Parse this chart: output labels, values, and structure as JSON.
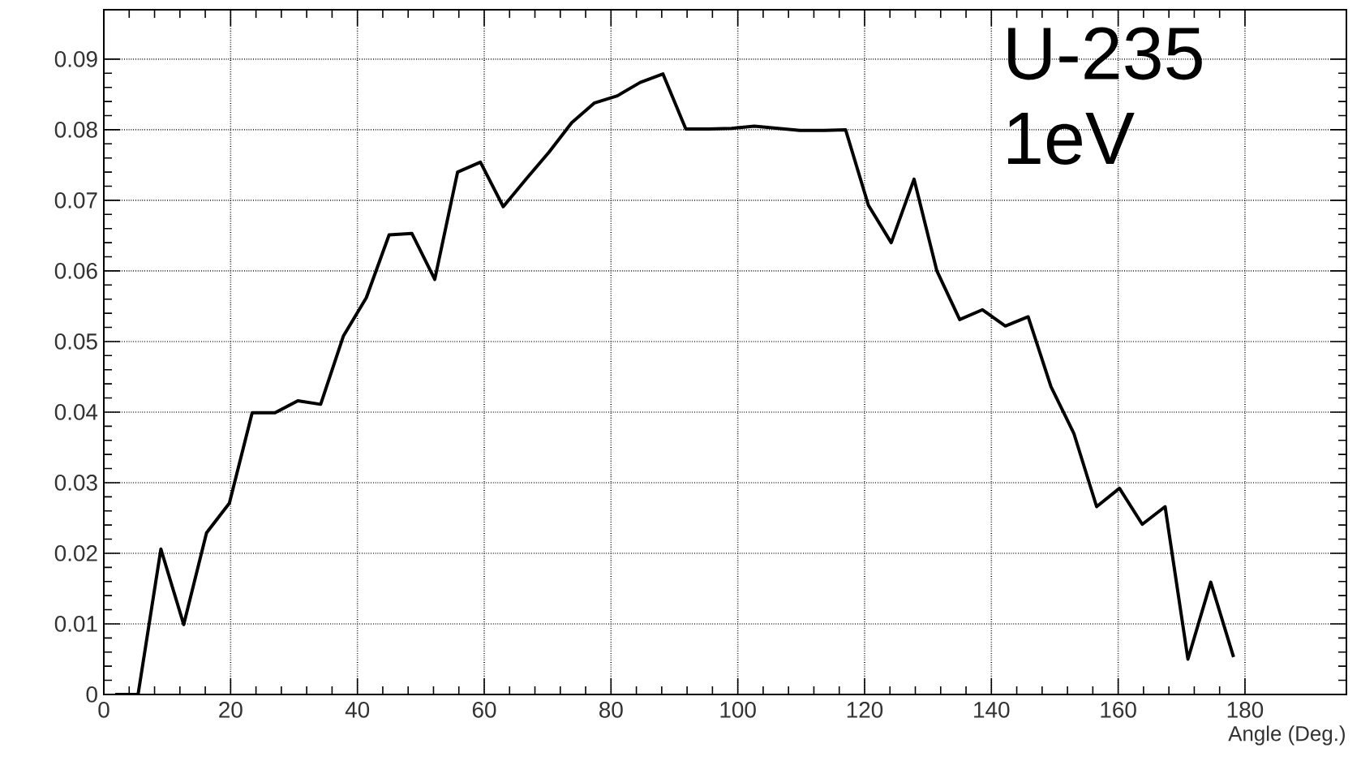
{
  "chart_data": {
    "type": "line",
    "xlabel": "Angle (Deg.)",
    "annotations": [
      "U-235",
      "1eV"
    ],
    "x": [
      1.8,
      5.4,
      9.0,
      12.6,
      16.2,
      19.8,
      23.4,
      27.0,
      30.6,
      34.2,
      37.8,
      41.4,
      45.0,
      48.6,
      52.2,
      55.8,
      59.4,
      63.0,
      66.6,
      70.2,
      73.8,
      77.4,
      81.0,
      84.6,
      88.2,
      91.8,
      95.4,
      99.0,
      102.6,
      106.2,
      109.8,
      113.4,
      117.0,
      120.6,
      124.2,
      127.8,
      131.4,
      135.0,
      138.6,
      142.2,
      145.8,
      149.4,
      153.0,
      156.6,
      160.2,
      163.8,
      167.4,
      171.0,
      174.6,
      178.2
    ],
    "series": [
      {
        "color": "#000000",
        "values": [
          0,
          0,
          0.0206,
          0.0099,
          0.0229,
          0.0271,
          0.0399,
          0.0399,
          0.0416,
          0.0411,
          0.0508,
          0.0562,
          0.0651,
          0.0653,
          0.0588,
          0.074,
          0.0754,
          0.0691,
          0.073,
          0.0768,
          0.081,
          0.0838,
          0.0848,
          0.0867,
          0.0879,
          0.0801,
          0.0801,
          0.0802,
          0.0805,
          0.0802,
          0.0799,
          0.0799,
          0.08,
          0.0693,
          0.064,
          0.073,
          0.06,
          0.0531,
          0.0545,
          0.0522,
          0.0535,
          0.0436,
          0.037,
          0.0266,
          0.0292,
          0.0241,
          0.0266,
          0.005,
          0.0159,
          0.0053
        ]
      }
    ],
    "xlim": [
      0,
      196
    ],
    "ylim": [
      0,
      0.097
    ],
    "xticks": [
      0,
      20,
      40,
      60,
      80,
      100,
      120,
      140,
      160,
      180
    ],
    "yticks": [
      0,
      0.01,
      0.02,
      0.03,
      0.04,
      0.05,
      0.06,
      0.07,
      0.08,
      0.09
    ],
    "grid": true,
    "line_style": "solid",
    "marker": "none"
  }
}
